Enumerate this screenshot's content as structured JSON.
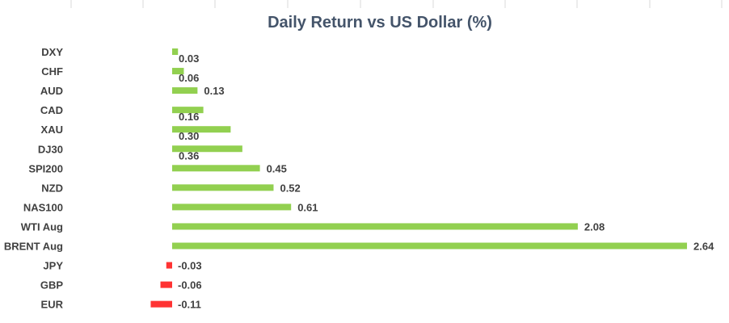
{
  "chart_data": {
    "type": "bar",
    "orientation": "horizontal",
    "title": "Daily Return vs US Dollar (%)",
    "categories": [
      "DXY",
      "CHF",
      "AUD",
      "CAD",
      "XAU",
      "DJ30",
      "SPI200",
      "NZD",
      "NAS100",
      "WTI Aug",
      "BRENT Aug",
      "JPY",
      "GBP",
      "EUR"
    ],
    "values": [
      0.03,
      0.06,
      0.13,
      0.16,
      0.3,
      0.36,
      0.45,
      0.52,
      0.61,
      2.08,
      2.64,
      -0.03,
      -0.06,
      -0.11
    ],
    "labels": [
      "0.03",
      "0.06",
      "0.13",
      "0.16",
      "0.30",
      "0.36",
      "0.45",
      "0.52",
      "0.61",
      "2.08",
      "2.64",
      "-0.03",
      "-0.06",
      "-0.11"
    ],
    "colors": {
      "positive": "#92d050",
      "negative": "#ff3333"
    },
    "xlabel": "",
    "ylabel": "",
    "xlim": [
      -0.11,
      2.64
    ],
    "grid": false,
    "legend": "none"
  }
}
